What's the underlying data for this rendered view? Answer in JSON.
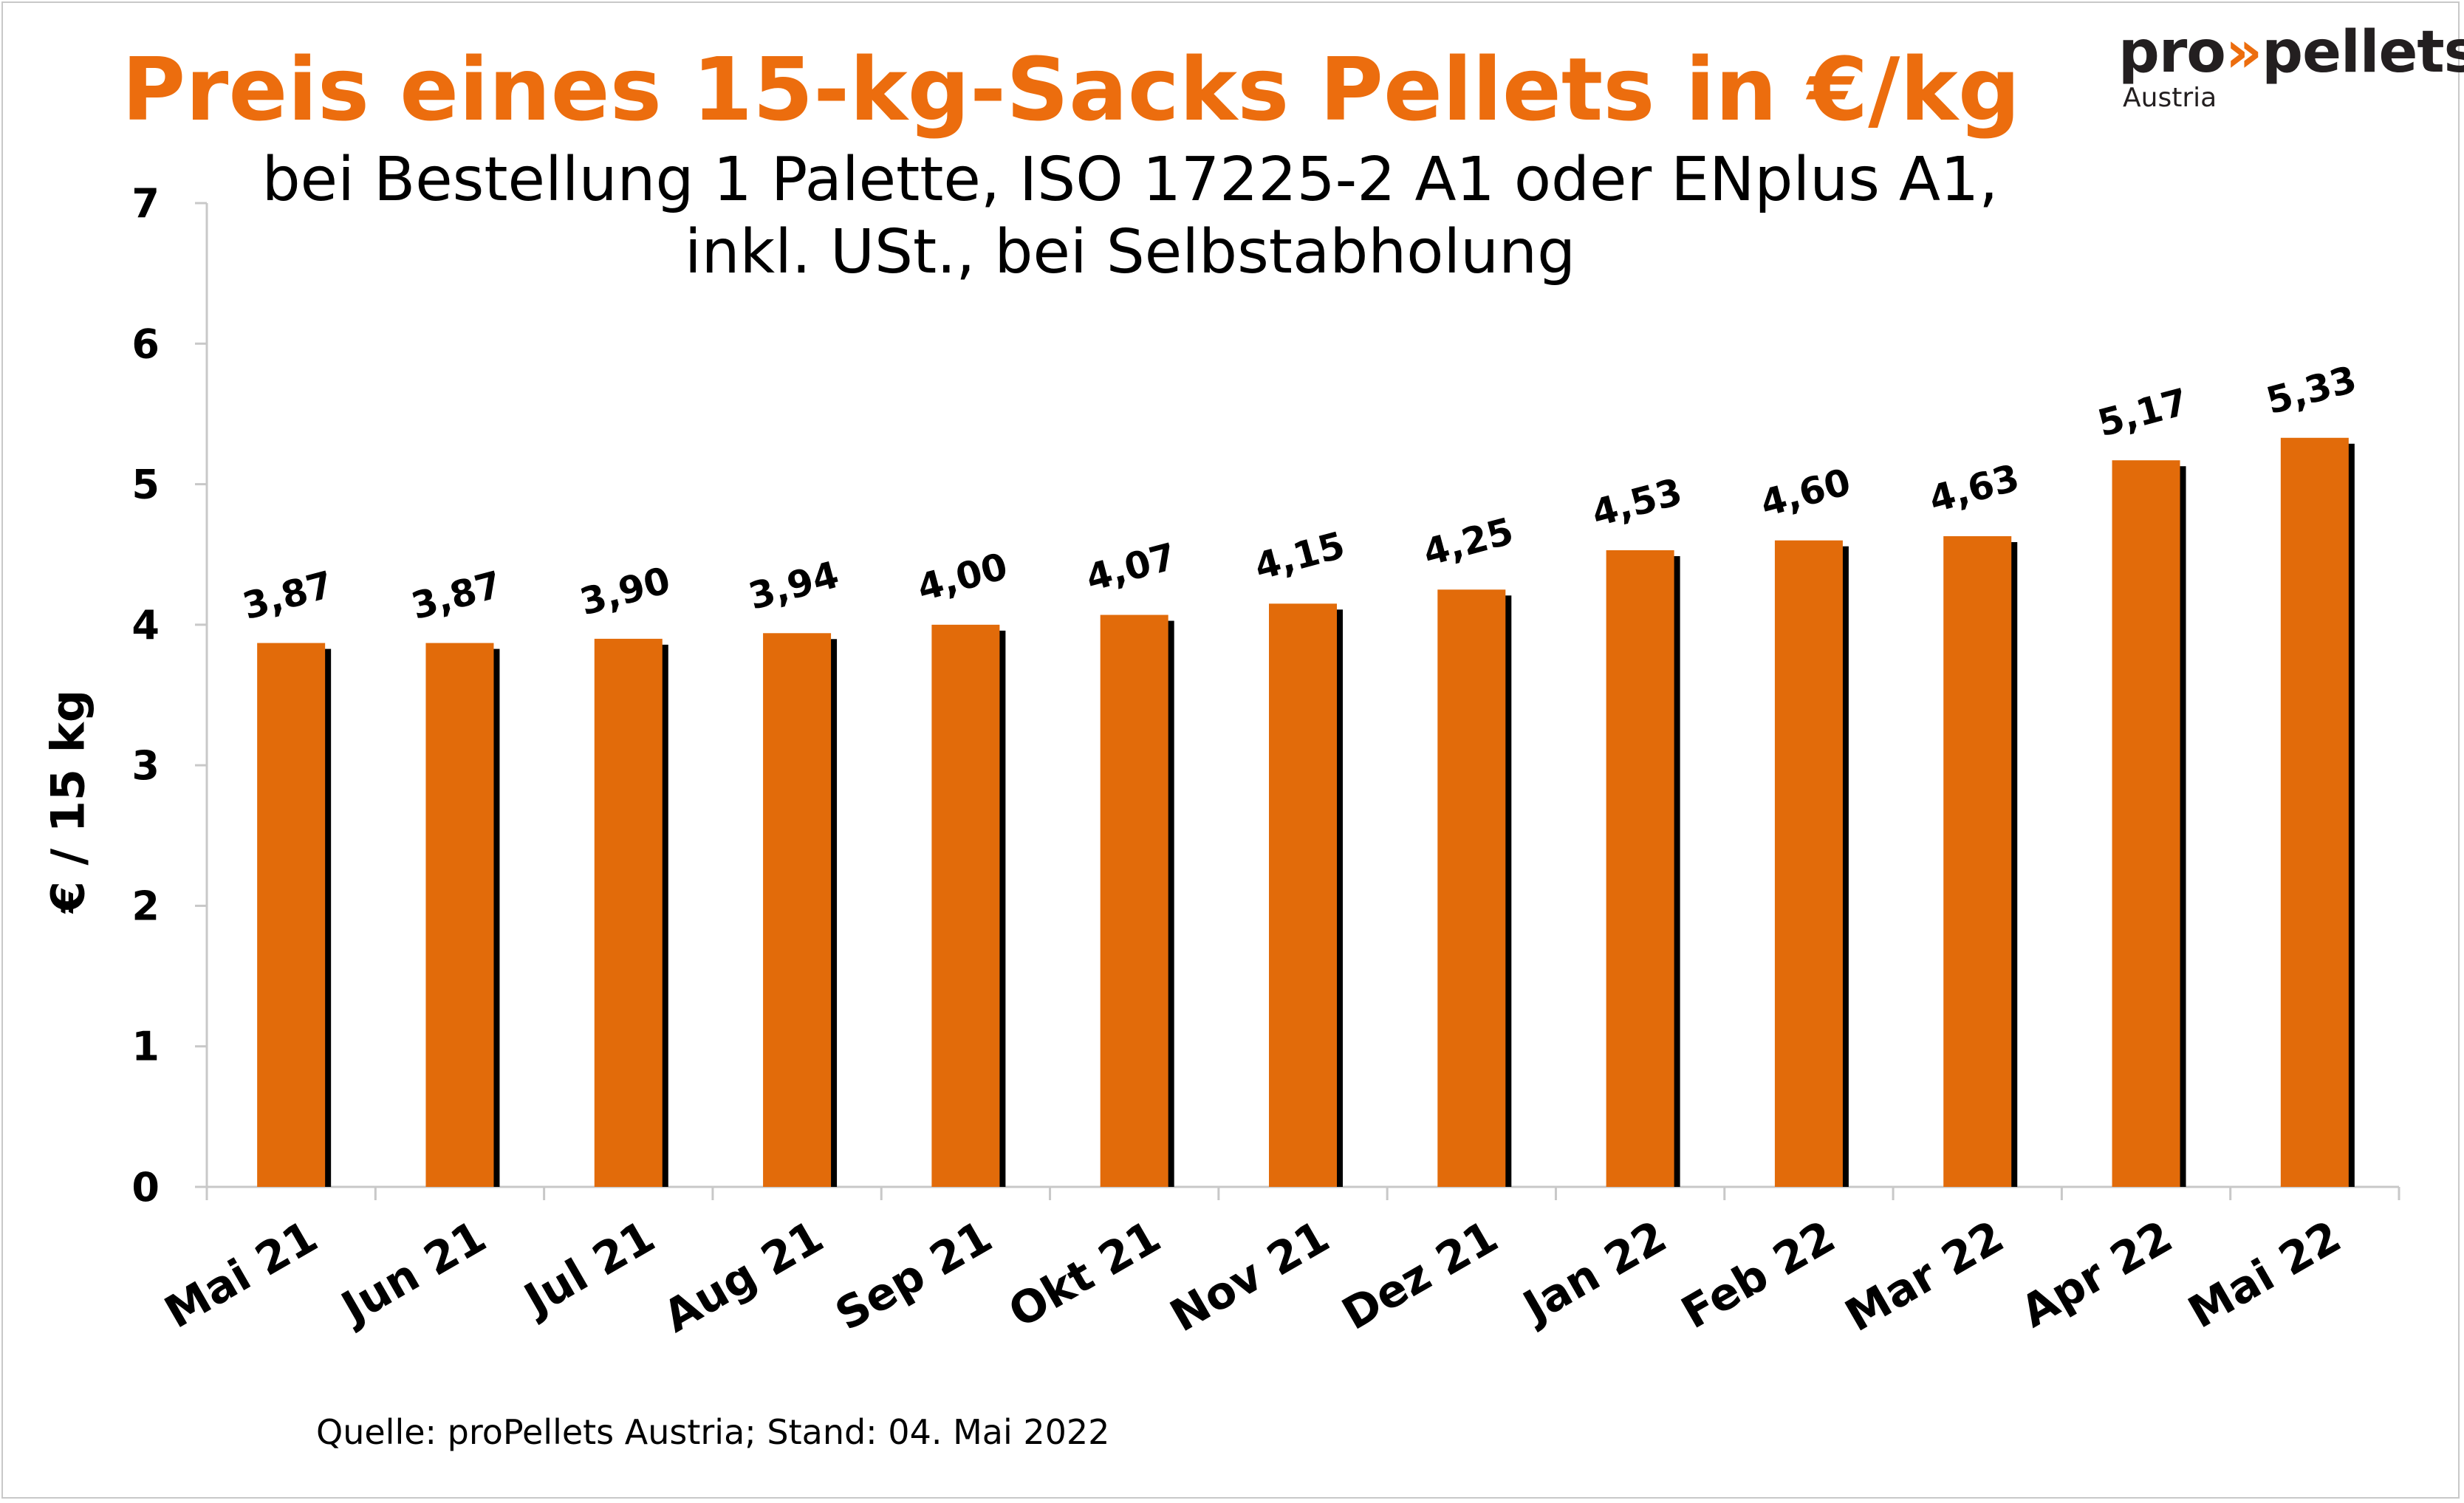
{
  "logo": {
    "brand_left": "pro",
    "brand_arrow": "»",
    "brand_right": "pellets",
    "country": "Austria"
  },
  "source": "Quelle: proPellets Austria; Stand: 04. Mai 2022",
  "colors": {
    "title": "#ec6d0e",
    "bar": "#e26b0a",
    "bar_shadow": "#000000",
    "axis": "#c8c8c8"
  },
  "chart_data": {
    "type": "bar",
    "title": "Preis eines 15-kg-Sacks Pellets in €/kg",
    "subtitle_line1": "bei Bestellung 1 Palette, ISO 17225-2 A1 oder ENplus A1,",
    "subtitle_line2": "inkl. USt., bei Selbstabholung",
    "xlabel": "",
    "ylabel": "€ / 15 kg",
    "ylim": [
      0,
      7
    ],
    "yticks": [
      "0",
      "1",
      "2",
      "3",
      "4",
      "5",
      "6",
      "7"
    ],
    "grid": false,
    "categories": [
      "Mai 21",
      "Jun 21",
      "Jul 21",
      "Aug 21",
      "Sep 21",
      "Okt 21",
      "Nov 21",
      "Dez 21",
      "Jan 22",
      "Feb 22",
      "Mar 22",
      "Apr 22",
      "Mai 22"
    ],
    "values": [
      3.87,
      3.87,
      3.9,
      3.94,
      4.0,
      4.07,
      4.15,
      4.25,
      4.53,
      4.6,
      4.63,
      5.17,
      5.33
    ],
    "value_labels": [
      "3,87",
      "3,87",
      "3,90",
      "3,94",
      "4,00",
      "4,07",
      "4,15",
      "4,25",
      "4,53",
      "4,60",
      "4,63",
      "5,17",
      "5,33"
    ]
  }
}
